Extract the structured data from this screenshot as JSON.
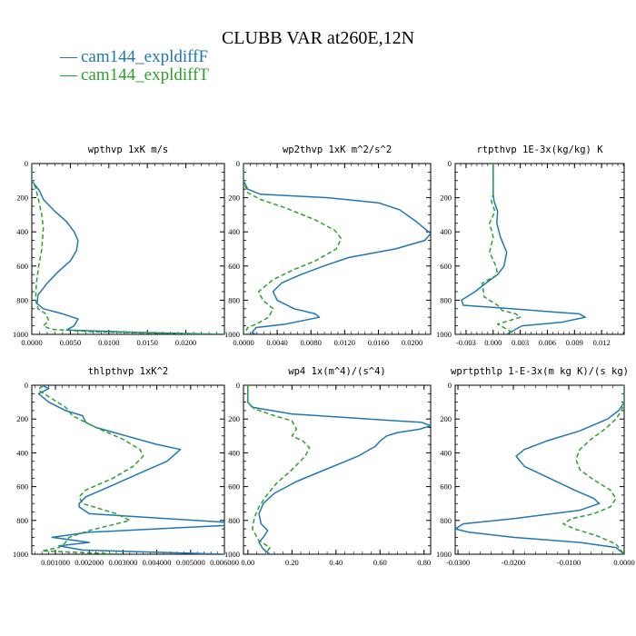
{
  "figure": {
    "title": "CLUBB VAR at260E,12N",
    "legend_label": "—",
    "legend": [
      {
        "name": "cam144_expldiffF",
        "color": "#1f77b4"
      },
      {
        "name": "cam144_expldiffT",
        "color": "#2ca02c"
      }
    ]
  },
  "chart_data": [
    {
      "type": "line",
      "title": "wpthvp  1xK m/s",
      "xlim": [
        0.0,
        0.025
      ],
      "ylim": [
        0,
        1000
      ],
      "y_inverted": true,
      "xticks": [
        0.0,
        0.005,
        0.01,
        0.015,
        0.02
      ],
      "xtick_labels": [
        "0.0000",
        "0.0050",
        "0.0100",
        "0.0150",
        "0.0200"
      ],
      "yticks": [
        0,
        200,
        400,
        600,
        800,
        1000
      ],
      "ytick_labels": [
        "0",
        "200",
        "400",
        "600",
        "800",
        "1000"
      ],
      "series": [
        {
          "name": "cam144_expldiffF",
          "color": "#1f77b4",
          "dash": "",
          "x": [
            0.0,
            0.0,
            0.0005,
            0.001,
            0.0015,
            0.003,
            0.0045,
            0.0055,
            0.006,
            0.0058,
            0.005,
            0.0035,
            0.002,
            0.0008,
            0.0007,
            0.0015,
            0.004,
            0.006,
            0.0055,
            0.0045,
            0.015,
            0.025
          ],
          "y": [
            0,
            100,
            130,
            160,
            210,
            280,
            340,
            400,
            450,
            510,
            570,
            630,
            700,
            770,
            820,
            850,
            880,
            910,
            950,
            975,
            990,
            1000
          ]
        },
        {
          "name": "cam144_expldiffT",
          "color": "#2ca02c",
          "dash": "5,3",
          "x": [
            0.0,
            0.0,
            0.0005,
            0.0008,
            0.0013,
            0.0015,
            0.0013,
            0.0009,
            0.0006,
            0.0005,
            0.0008,
            0.0018,
            0.0022,
            0.0015,
            0.0025,
            0.008,
            0.018,
            0.025
          ],
          "y": [
            0,
            100,
            140,
            200,
            300,
            380,
            500,
            600,
            700,
            800,
            850,
            880,
            920,
            950,
            970,
            985,
            995,
            1000
          ]
        }
      ]
    },
    {
      "type": "line",
      "title": "wp2thvp  1xK m^2/s^2",
      "xlim": [
        0.0,
        0.0222
      ],
      "ylim": [
        0,
        1000
      ],
      "y_inverted": true,
      "xticks": [
        0.0,
        0.004,
        0.008,
        0.012,
        0.016,
        0.02
      ],
      "xtick_labels": [
        "0.0000",
        "0.0040",
        "0.0080",
        "0.0120",
        "0.0160",
        "0.0200"
      ],
      "yticks": [
        0,
        200,
        400,
        600,
        800,
        1000
      ],
      "ytick_labels": [
        "0",
        "200",
        "400",
        "600",
        "800",
        "1000"
      ],
      "series": [
        {
          "name": "cam144_expldiffF",
          "color": "#1f77b4",
          "dash": "",
          "x": [
            0.0,
            0.0,
            0.0005,
            0.002,
            0.01,
            0.016,
            0.0185,
            0.0205,
            0.0222,
            0.0215,
            0.018,
            0.0125,
            0.0095,
            0.0068,
            0.0045,
            0.0035,
            0.004,
            0.006,
            0.0085,
            0.009,
            0.005,
            0.0015,
            0.001,
            0.0015
          ],
          "y": [
            0,
            100,
            150,
            180,
            200,
            230,
            270,
            340,
            410,
            450,
            500,
            550,
            600,
            650,
            700,
            750,
            800,
            850,
            880,
            900,
            940,
            960,
            990,
            1000
          ]
        },
        {
          "name": "cam144_expldiffT",
          "color": "#2ca02c",
          "dash": "5,3",
          "x": [
            0.0,
            0.0,
            0.0005,
            0.002,
            0.005,
            0.0085,
            0.0108,
            0.0116,
            0.011,
            0.0085,
            0.006,
            0.0035,
            0.0018,
            0.0023,
            0.0035,
            0.003,
            0.0015,
            0.0005,
            0.0003,
            0.0005
          ],
          "y": [
            0,
            100,
            170,
            210,
            260,
            330,
            390,
            440,
            500,
            570,
            620,
            680,
            750,
            800,
            850,
            900,
            940,
            960,
            980,
            1000
          ]
        }
      ]
    },
    {
      "type": "line",
      "title": "rtpthvp  1E-3x(kg/kg) K",
      "xlim": [
        -0.0042,
        0.0145
      ],
      "ylim": [
        0,
        1000
      ],
      "y_inverted": true,
      "xticks": [
        -0.003,
        0.0,
        0.003,
        0.006,
        0.009,
        0.012
      ],
      "xtick_labels": [
        "-0.003",
        "0.000",
        "0.003",
        "0.006",
        "0.009",
        "0.012"
      ],
      "yticks": [
        0,
        200,
        400,
        600,
        800,
        1000
      ],
      "ytick_labels": [
        "0",
        "200",
        "400",
        "600",
        "800",
        "1000"
      ],
      "series": [
        {
          "name": "cam144_expldiffF",
          "color": "#1f77b4",
          "dash": "",
          "x": [
            0.0,
            0.0,
            0.0,
            0.0001,
            0.0005,
            0.0004,
            0.0008,
            0.0015,
            0.0012,
            0.0005,
            -0.0008,
            -0.002,
            -0.0035,
            -0.0033,
            0.002,
            0.007,
            0.0095,
            0.0102,
            0.0075,
            0.0032,
            0.0025,
            0.0015
          ],
          "y": [
            0,
            100,
            180,
            220,
            280,
            350,
            430,
            520,
            600,
            650,
            700,
            750,
            800,
            830,
            850,
            870,
            880,
            900,
            930,
            950,
            970,
            1000
          ]
        },
        {
          "name": "cam144_expldiffT",
          "color": "#2ca02c",
          "dash": "5,3",
          "x": [
            0.0,
            0.0,
            0.0,
            -0.0002,
            0.0002,
            -0.0004,
            0.0,
            -0.0004,
            0.0003,
            0.0005,
            -0.0012,
            -0.001,
            0.0005,
            0.001,
            0.0025,
            0.003,
            0.0005,
            0.0015,
            0.0025
          ],
          "y": [
            0,
            100,
            180,
            220,
            280,
            350,
            430,
            520,
            600,
            650,
            700,
            780,
            830,
            860,
            880,
            900,
            940,
            970,
            1000
          ]
        }
      ]
    },
    {
      "type": "line",
      "title": "thlpthvp  1xK^2",
      "xlim": [
        0.0003,
        0.006
      ],
      "ylim": [
        0,
        1000
      ],
      "y_inverted": true,
      "xticks": [
        0.001,
        0.002,
        0.003,
        0.004,
        0.005,
        0.006
      ],
      "xtick_labels": [
        "0.001000",
        "0.002000",
        "0.003000",
        "0.004000",
        "0.005000",
        "0.006000"
      ],
      "yticks": [
        0,
        200,
        400,
        600,
        800,
        1000
      ],
      "ytick_labels": [
        "0",
        "200",
        "400",
        "600",
        "800",
        "1000"
      ],
      "series": [
        {
          "name": "cam144_expldiffF",
          "color": "#1f77b4",
          "dash": "",
          "x": [
            0.0006,
            0.0008,
            0.0005,
            0.0008,
            0.0013,
            0.0018,
            0.0019,
            0.0022,
            0.0031,
            0.004,
            0.0047,
            0.0043,
            0.0035,
            0.0026,
            0.0019,
            0.0017,
            0.0017,
            0.002,
            0.006,
            0.006,
            0.002,
            0.0009,
            0.002,
            0.0011,
            0.0018,
            0.006
          ],
          "y": [
            0,
            20,
            50,
            100,
            150,
            180,
            220,
            250,
            300,
            350,
            380,
            450,
            520,
            600,
            660,
            700,
            720,
            760,
            810,
            830,
            870,
            900,
            930,
            950,
            975,
            1000
          ]
        },
        {
          "name": "cam144_expldiffT",
          "color": "#2ca02c",
          "dash": "5,3",
          "x": [
            0.0006,
            0.0005,
            0.0009,
            0.0013,
            0.0015,
            0.0022,
            0.003,
            0.0035,
            0.0036,
            0.0033,
            0.0027,
            0.0019,
            0.0017,
            0.0018,
            0.0028,
            0.0032,
            0.002,
            0.0014,
            0.0013,
            0.0011,
            0.0006,
            0.003
          ],
          "y": [
            0,
            30,
            80,
            130,
            180,
            250,
            320,
            380,
            420,
            480,
            550,
            620,
            660,
            700,
            760,
            800,
            860,
            900,
            930,
            960,
            980,
            1000
          ]
        }
      ]
    },
    {
      "type": "line",
      "title": "wp4  1x(m^4)/(s^4)",
      "xlim": [
        -0.02,
        0.83
      ],
      "ylim": [
        0,
        1000
      ],
      "y_inverted": true,
      "xticks": [
        0.0,
        0.2,
        0.4,
        0.6,
        0.8
      ],
      "xtick_labels": [
        "0.00",
        "0.20",
        "0.40",
        "0.60",
        "0.80"
      ],
      "yticks": [
        0,
        200,
        400,
        600,
        800,
        1000
      ],
      "ytick_labels": [
        "0",
        "200",
        "400",
        "600",
        "800",
        "1000"
      ],
      "series": [
        {
          "name": "cam144_expldiffF",
          "color": "#1f77b4",
          "dash": "",
          "x": [
            0.0,
            0.0,
            0.02,
            0.2,
            0.55,
            0.79,
            0.83,
            0.78,
            0.68,
            0.63,
            0.6,
            0.58,
            0.5,
            0.35,
            0.22,
            0.12,
            0.07,
            0.05,
            0.06,
            0.09,
            0.07,
            0.05,
            0.07,
            0.1
          ],
          "y": [
            0,
            100,
            130,
            170,
            200,
            220,
            240,
            260,
            280,
            300,
            330,
            360,
            420,
            500,
            570,
            640,
            700,
            760,
            820,
            860,
            900,
            930,
            970,
            1000
          ]
        },
        {
          "name": "cam144_expldiffT",
          "color": "#2ca02c",
          "dash": "5,3",
          "x": [
            0.0,
            0.0,
            0.03,
            0.12,
            0.2,
            0.22,
            0.2,
            0.25,
            0.28,
            0.26,
            0.2,
            0.13,
            0.08,
            0.05,
            0.03,
            0.02,
            0.05,
            0.1,
            0.08
          ],
          "y": [
            0,
            100,
            140,
            180,
            210,
            260,
            300,
            330,
            370,
            420,
            500,
            580,
            660,
            720,
            780,
            850,
            920,
            960,
            1000
          ]
        }
      ]
    },
    {
      "type": "line",
      "title": "wprtpthlp  1-E-3x(m kg K)/(s kg)",
      "xlim": [
        -0.0305,
        0.0
      ],
      "ylim": [
        0,
        1000
      ],
      "y_inverted": true,
      "xticks": [
        -0.03,
        -0.02,
        -0.01,
        0.0
      ],
      "xtick_labels": [
        "-0.0300",
        "-0.0200",
        "-0.0100",
        "0.0000"
      ],
      "yticks": [
        0,
        200,
        400,
        600,
        800,
        1000
      ],
      "ytick_labels": [
        "0",
        "200",
        "400",
        "600",
        "800",
        "1000"
      ],
      "series": [
        {
          "name": "cam144_expldiffF",
          "color": "#1f77b4",
          "dash": "",
          "x": [
            0.0,
            0.0,
            -0.001,
            -0.003,
            -0.008,
            -0.014,
            -0.018,
            -0.0195,
            -0.018,
            -0.0135,
            -0.009,
            -0.0055,
            -0.0045,
            -0.008,
            -0.02,
            -0.029,
            -0.0305,
            -0.028,
            -0.02,
            -0.008,
            -0.0015,
            0.0
          ],
          "y": [
            0,
            100,
            150,
            200,
            270,
            330,
            380,
            420,
            480,
            550,
            620,
            670,
            700,
            740,
            790,
            820,
            850,
            870,
            900,
            930,
            960,
            1000
          ]
        },
        {
          "name": "cam144_expldiffT",
          "color": "#2ca02c",
          "dash": "5,3",
          "x": [
            0.0,
            0.0,
            -0.0005,
            -0.0015,
            -0.0035,
            -0.006,
            -0.008,
            -0.0087,
            -0.008,
            -0.0055,
            -0.0025,
            -0.0015,
            -0.0025,
            -0.0055,
            -0.0095,
            -0.011,
            -0.009,
            -0.005,
            -0.0015,
            0.0
          ],
          "y": [
            0,
            100,
            150,
            200,
            260,
            320,
            380,
            440,
            500,
            560,
            620,
            670,
            720,
            760,
            790,
            820,
            850,
            890,
            940,
            1000
          ]
        }
      ]
    }
  ]
}
